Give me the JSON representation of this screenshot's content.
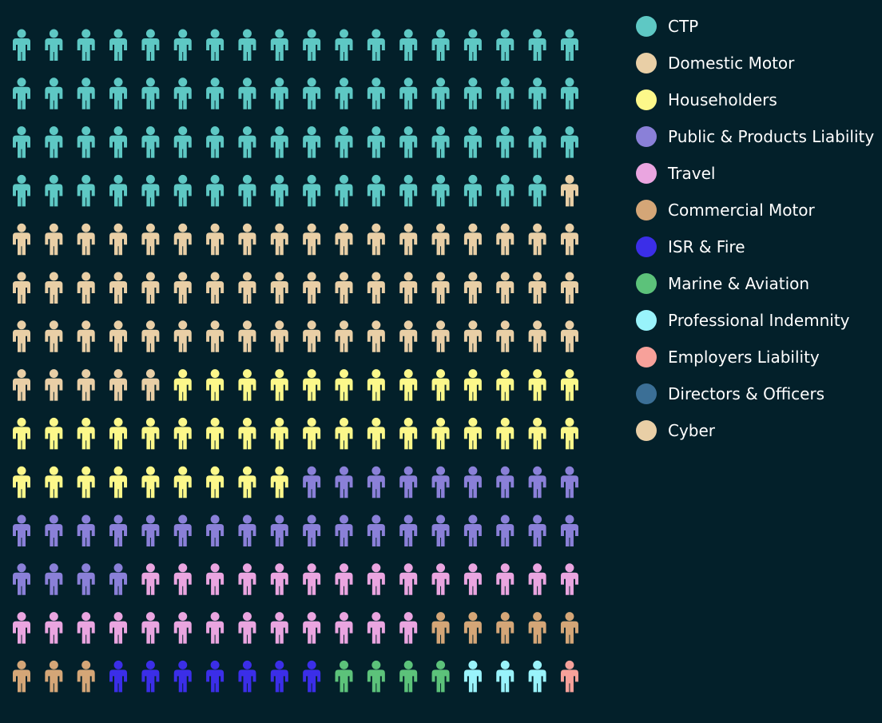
{
  "chart_data": {
    "type": "waffle",
    "categories": [
      "CTP",
      "Domestic Motor",
      "Householders",
      "Public & Products Liability",
      "Travel",
      "Commercial Motor",
      "ISR & Fire",
      "Marine & Aviation",
      "Professional Indemnity",
      "Employers Liability",
      "Directors & Officers",
      "Cyber"
    ],
    "values": [
      71,
      60,
      40,
      31,
      27,
      8,
      7,
      4,
      3,
      1,
      0,
      0
    ],
    "colors": [
      "#5ec8c4",
      "#e9cfa6",
      "#fcf88a",
      "#8a80d8",
      "#eaa5e0",
      "#d4a677",
      "#3b2ee8",
      "#5cc27a",
      "#99f3fb",
      "#f7a19a",
      "#3b6f96",
      "#e9cfa6"
    ],
    "legend": "right"
  }
}
